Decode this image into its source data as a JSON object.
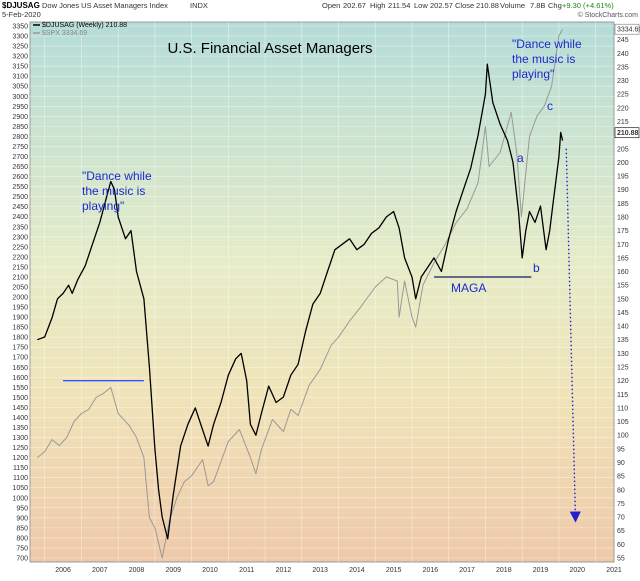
{
  "header": {
    "symbol": "$DJUSAG",
    "name": "Dow Jones US Asset Managers Index",
    "exchange": "INDX",
    "date": "5-Feb-2020",
    "open_label": "Open",
    "open": "202.67",
    "high_label": "High",
    "high": "211.54",
    "low_label": "Low",
    "low": "202.57",
    "close_label": "Close",
    "close": "210.88",
    "volume_label": "Volume",
    "volume": "7.8B",
    "chg_label": "Chg",
    "chg": "+9.30 (+4.61%)",
    "credit": "© StockCharts.com"
  },
  "legend": {
    "series1": "$DJUSAG (Weekly) 210.88",
    "series2": "$SPX 3334.69"
  },
  "chart_data": {
    "type": "line",
    "title": "U.S. Financial Asset Managers",
    "x_ticks": [
      "2006",
      "2007",
      "2008",
      "2009",
      "2010",
      "2011",
      "2012",
      "2013",
      "2014",
      "2015",
      "2016",
      "2017",
      "2018",
      "2019",
      "2020",
      "2021"
    ],
    "left_axis": {
      "series": "$SPX",
      "ylim": [
        700,
        3350
      ],
      "ticks": [
        700,
        750,
        800,
        850,
        900,
        950,
        1000,
        1050,
        1100,
        1150,
        1200,
        1250,
        1300,
        1350,
        1400,
        1450,
        1500,
        1550,
        1600,
        1650,
        1700,
        1750,
        1800,
        1850,
        1900,
        1950,
        2000,
        2050,
        2100,
        2150,
        2200,
        2250,
        2300,
        2350,
        2400,
        2450,
        2500,
        2550,
        2600,
        2650,
        2700,
        2750,
        2800,
        2850,
        2900,
        2950,
        3000,
        3050,
        3100,
        3150,
        3200,
        3250,
        3300,
        3350
      ]
    },
    "right_axis": {
      "series": "$DJUSAG",
      "ylim": [
        55,
        250
      ],
      "ticks": [
        55,
        60,
        65,
        70,
        75,
        80,
        85,
        90,
        95,
        100,
        105,
        110,
        115,
        120,
        125,
        130,
        135,
        140,
        145,
        150,
        155,
        160,
        165,
        170,
        175,
        180,
        185,
        190,
        195,
        200,
        205,
        210,
        215,
        220,
        225,
        230,
        235,
        240,
        245
      ]
    },
    "last_values": {
      "djusag": "210.88",
      "spx": "3334.69"
    },
    "series": [
      {
        "name": "$DJUSAG",
        "axis": "right",
        "color": "#000000",
        "points": [
          [
            2005.8,
            135
          ],
          [
            2006.0,
            136
          ],
          [
            2006.2,
            143
          ],
          [
            2006.35,
            150
          ],
          [
            2006.5,
            152
          ],
          [
            2006.65,
            155
          ],
          [
            2006.75,
            152
          ],
          [
            2006.9,
            157
          ],
          [
            2007.1,
            162
          ],
          [
            2007.3,
            170
          ],
          [
            2007.5,
            178
          ],
          [
            2007.7,
            188
          ],
          [
            2007.8,
            193
          ],
          [
            2007.9,
            190
          ],
          [
            2008.0,
            180
          ],
          [
            2008.2,
            172
          ],
          [
            2008.35,
            175
          ],
          [
            2008.5,
            160
          ],
          [
            2008.7,
            150
          ],
          [
            2008.85,
            125
          ],
          [
            2009.0,
            95
          ],
          [
            2009.1,
            80
          ],
          [
            2009.2,
            70
          ],
          [
            2009.35,
            62
          ],
          [
            2009.5,
            78
          ],
          [
            2009.7,
            96
          ],
          [
            2009.9,
            104
          ],
          [
            2010.1,
            110
          ],
          [
            2010.3,
            102
          ],
          [
            2010.45,
            96
          ],
          [
            2010.6,
            104
          ],
          [
            2010.8,
            112
          ],
          [
            2011.0,
            122
          ],
          [
            2011.2,
            128
          ],
          [
            2011.35,
            130
          ],
          [
            2011.5,
            120
          ],
          [
            2011.6,
            104
          ],
          [
            2011.75,
            100
          ],
          [
            2011.9,
            108
          ],
          [
            2012.1,
            118
          ],
          [
            2012.3,
            112
          ],
          [
            2012.5,
            114
          ],
          [
            2012.7,
            122
          ],
          [
            2012.9,
            126
          ],
          [
            2013.1,
            138
          ],
          [
            2013.3,
            148
          ],
          [
            2013.5,
            152
          ],
          [
            2013.7,
            160
          ],
          [
            2013.9,
            168
          ],
          [
            2014.1,
            170
          ],
          [
            2014.3,
            172
          ],
          [
            2014.5,
            168
          ],
          [
            2014.7,
            170
          ],
          [
            2014.9,
            174
          ],
          [
            2015.1,
            176
          ],
          [
            2015.3,
            180
          ],
          [
            2015.5,
            182
          ],
          [
            2015.65,
            176
          ],
          [
            2015.8,
            165
          ],
          [
            2016.0,
            158
          ],
          [
            2016.1,
            150
          ],
          [
            2016.25,
            158
          ],
          [
            2016.45,
            162
          ],
          [
            2016.6,
            165
          ],
          [
            2016.8,
            160
          ],
          [
            2017.0,
            172
          ],
          [
            2017.2,
            182
          ],
          [
            2017.4,
            190
          ],
          [
            2017.6,
            198
          ],
          [
            2017.8,
            210
          ],
          [
            2018.0,
            225
          ],
          [
            2018.05,
            236
          ],
          [
            2018.2,
            222
          ],
          [
            2018.4,
            214
          ],
          [
            2018.6,
            208
          ],
          [
            2018.75,
            200
          ],
          [
            2018.9,
            182
          ],
          [
            2019.0,
            165
          ],
          [
            2019.1,
            175
          ],
          [
            2019.2,
            182
          ],
          [
            2019.35,
            178
          ],
          [
            2019.5,
            184
          ],
          [
            2019.65,
            168
          ],
          [
            2019.75,
            175
          ],
          [
            2019.85,
            186
          ],
          [
            2020.0,
            202
          ],
          [
            2020.05,
            211
          ],
          [
            2020.1,
            208
          ]
        ]
      },
      {
        "name": "$SPX",
        "axis": "left",
        "color": "#999999",
        "points": [
          [
            2005.8,
            1200
          ],
          [
            2006.0,
            1230
          ],
          [
            2006.2,
            1290
          ],
          [
            2006.4,
            1260
          ],
          [
            2006.6,
            1300
          ],
          [
            2006.8,
            1380
          ],
          [
            2007.0,
            1420
          ],
          [
            2007.2,
            1440
          ],
          [
            2007.4,
            1500
          ],
          [
            2007.6,
            1520
          ],
          [
            2007.8,
            1550
          ],
          [
            2008.0,
            1420
          ],
          [
            2008.3,
            1360
          ],
          [
            2008.5,
            1300
          ],
          [
            2008.7,
            1200
          ],
          [
            2008.85,
            900
          ],
          [
            2009.0,
            850
          ],
          [
            2009.2,
            700
          ],
          [
            2009.4,
            890
          ],
          [
            2009.6,
            1000
          ],
          [
            2009.8,
            1080
          ],
          [
            2010.0,
            1110
          ],
          [
            2010.3,
            1190
          ],
          [
            2010.45,
            1060
          ],
          [
            2010.6,
            1080
          ],
          [
            2010.8,
            1180
          ],
          [
            2011.0,
            1280
          ],
          [
            2011.3,
            1340
          ],
          [
            2011.6,
            1200
          ],
          [
            2011.75,
            1120
          ],
          [
            2011.9,
            1240
          ],
          [
            2012.2,
            1390
          ],
          [
            2012.5,
            1330
          ],
          [
            2012.7,
            1440
          ],
          [
            2012.9,
            1410
          ],
          [
            2013.2,
            1560
          ],
          [
            2013.5,
            1640
          ],
          [
            2013.8,
            1760
          ],
          [
            2014.0,
            1800
          ],
          [
            2014.3,
            1880
          ],
          [
            2014.6,
            1950
          ],
          [
            2014.8,
            2000
          ],
          [
            2015.0,
            2050
          ],
          [
            2015.3,
            2100
          ],
          [
            2015.6,
            2080
          ],
          [
            2015.65,
            1900
          ],
          [
            2015.8,
            2080
          ],
          [
            2016.0,
            1900
          ],
          [
            2016.1,
            1850
          ],
          [
            2016.3,
            2060
          ],
          [
            2016.6,
            2170
          ],
          [
            2016.9,
            2260
          ],
          [
            2017.2,
            2370
          ],
          [
            2017.5,
            2440
          ],
          [
            2017.8,
            2570
          ],
          [
            2018.0,
            2850
          ],
          [
            2018.1,
            2650
          ],
          [
            2018.4,
            2720
          ],
          [
            2018.7,
            2920
          ],
          [
            2018.85,
            2720
          ],
          [
            2018.98,
            2400
          ],
          [
            2019.2,
            2800
          ],
          [
            2019.4,
            2900
          ],
          [
            2019.6,
            2950
          ],
          [
            2019.8,
            3050
          ],
          [
            2020.0,
            3300
          ],
          [
            2020.1,
            3334
          ]
        ]
      }
    ],
    "annotations": [
      {
        "text": "\"Dance while the music is playing\"",
        "lines": [
          "\"Dance while",
          "the music is",
          "playing\""
        ]
      },
      {
        "text": "\"Dance while the music is playing\"",
        "lines": [
          "\"Dance while",
          "the music is",
          "playing\""
        ]
      },
      {
        "text": "MAGA"
      },
      {
        "text": "a"
      },
      {
        "text": "b"
      },
      {
        "text": "c"
      }
    ],
    "reference_lines": [
      {
        "axis": "right",
        "value": 120,
        "x_from": 2006.5,
        "x_to": 2008.7,
        "color": "#3355ff"
      },
      {
        "axis": "right",
        "value": 158,
        "x_from": 2016.6,
        "x_to": 2019.25,
        "color": "#1a1a66"
      }
    ],
    "projection": {
      "from": [
        2020.2,
        205
      ],
      "to": [
        2020.45,
        70
      ],
      "style": "dotted",
      "color": "#2222cc"
    },
    "grid": true,
    "background": "gradient"
  }
}
